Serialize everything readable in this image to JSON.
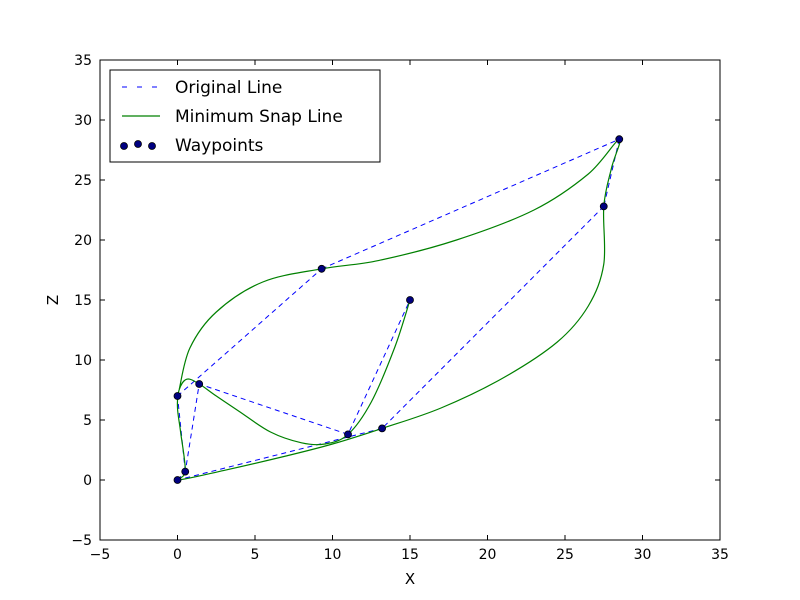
{
  "chart_data": {
    "type": "line",
    "xlabel": "X",
    "ylabel": "Z",
    "xlim": [
      -5,
      35
    ],
    "ylim": [
      -5,
      35
    ],
    "xticks": [
      -5,
      0,
      5,
      10,
      15,
      20,
      25,
      30,
      35
    ],
    "yticks": [
      -5,
      0,
      5,
      10,
      15,
      20,
      25,
      30,
      35
    ],
    "grid": false,
    "legend_position": "top-left",
    "series": [
      {
        "name": "Original Line",
        "style": "dashed",
        "color": "#0000ff",
        "points": [
          [
            0.0,
            0.0
          ],
          [
            0.5,
            0.7
          ],
          [
            1.4,
            8.0
          ],
          [
            11.0,
            3.8
          ],
          [
            15.0,
            15.0
          ]
        ]
      },
      {
        "name": "Minimum Snap Line",
        "style": "solid",
        "color": "#008000",
        "points": [
          [
            15.0,
            15.0
          ],
          [
            14.0,
            11.0
          ],
          [
            12.5,
            6.5
          ],
          [
            11.0,
            3.8
          ],
          [
            9.5,
            3.0
          ],
          [
            8.0,
            3.1
          ],
          [
            6.0,
            4.0
          ],
          [
            4.0,
            5.7
          ],
          [
            2.5,
            7.0
          ],
          [
            1.4,
            8.0
          ],
          [
            0.6,
            8.4
          ],
          [
            0.1,
            7.5
          ],
          [
            0.0,
            6.0
          ],
          [
            0.2,
            4.0
          ],
          [
            0.5,
            0.7
          ],
          [
            0.0,
            0.0
          ],
          [
            3.0,
            0.8
          ],
          [
            7.0,
            2.0
          ],
          [
            10.0,
            3.0
          ],
          [
            13.2,
            4.3
          ],
          [
            17.0,
            6.0
          ],
          [
            21.0,
            8.5
          ],
          [
            24.5,
            11.5
          ],
          [
            26.5,
            14.5
          ],
          [
            27.5,
            18.0
          ],
          [
            27.5,
            22.8
          ],
          [
            28.0,
            26.0
          ],
          [
            28.5,
            28.4
          ],
          [
            26.5,
            25.5
          ],
          [
            23.0,
            22.5
          ],
          [
            18.0,
            20.0
          ],
          [
            13.0,
            18.3
          ],
          [
            9.3,
            17.6
          ],
          [
            5.5,
            16.5
          ],
          [
            2.5,
            14.0
          ],
          [
            0.8,
            11.0
          ],
          [
            0.1,
            7.5
          ]
        ]
      },
      {
        "name": "Waypoints",
        "style": "scatter",
        "color": "#000080",
        "points": [
          [
            0.0,
            0.0
          ],
          [
            0.5,
            0.7
          ],
          [
            0.0,
            7.0
          ],
          [
            1.4,
            8.0
          ],
          [
            11.0,
            3.8
          ],
          [
            15.0,
            15.0
          ],
          [
            13.2,
            4.3
          ],
          [
            27.5,
            22.8
          ],
          [
            28.5,
            28.4
          ],
          [
            9.3,
            17.6
          ]
        ]
      }
    ],
    "extra_dashed_segments": [
      [
        [
          0.5,
          0.7
        ],
        [
          0.0,
          7.0
        ]
      ],
      [
        [
          0.0,
          7.0
        ],
        [
          9.3,
          17.6
        ]
      ],
      [
        [
          9.3,
          17.6
        ],
        [
          28.5,
          28.4
        ]
      ],
      [
        [
          28.5,
          28.4
        ],
        [
          27.5,
          22.8
        ]
      ],
      [
        [
          27.5,
          22.8
        ],
        [
          13.2,
          4.3
        ]
      ],
      [
        [
          13.2,
          4.3
        ],
        [
          0.0,
          0.0
        ]
      ]
    ]
  }
}
